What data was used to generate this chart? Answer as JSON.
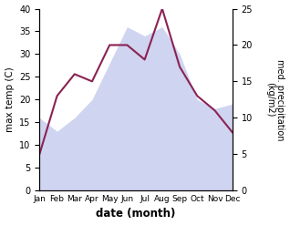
{
  "months": [
    "Jan",
    "Feb",
    "Mar",
    "Apr",
    "May",
    "Jun",
    "Jul",
    "Aug",
    "Sep",
    "Oct",
    "Nov",
    "Dec"
  ],
  "max_temp": [
    16,
    13,
    16,
    20,
    28,
    36,
    34,
    36,
    30,
    20,
    18,
    19
  ],
  "precipitation": [
    5,
    13,
    16,
    15,
    20,
    20,
    18,
    25,
    17,
    13,
    11,
    8
  ],
  "precip_color": "#8b2252",
  "left_ylabel": "max temp (C)",
  "right_ylabel": "med. precipitation\n(kg/m2)",
  "xlabel": "date (month)",
  "ylim_left": [
    0,
    40
  ],
  "ylim_right": [
    0,
    25
  ],
  "fill_color": "#b0b8e8",
  "fill_alpha": 0.6
}
